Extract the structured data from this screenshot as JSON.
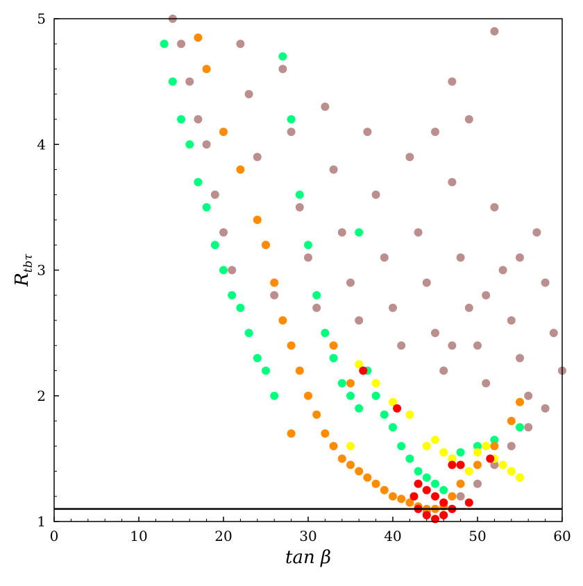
{
  "chart_data": {
    "type": "scatter",
    "title": "",
    "xlabel": "tan β",
    "ylabel": "R",
    "ylabel_subscript": "tbτ",
    "xlim": [
      0,
      60
    ],
    "ylim": [
      1,
      5
    ],
    "x_ticks": [
      0,
      10,
      20,
      30,
      40,
      50,
      60
    ],
    "y_ticks": [
      1,
      2,
      3,
      4,
      5
    ],
    "x_tick_labels": [
      "0",
      "10",
      "20",
      "30",
      "40",
      "50",
      "60"
    ],
    "y_tick_labels": [
      "1",
      "2",
      "3",
      "4",
      "5"
    ],
    "grid": false,
    "legend": "none",
    "reference_line": {
      "y": 1.1,
      "color": "#000000"
    },
    "series": [
      {
        "color": "#bc8f8f",
        "points": [
          [
            14,
            5
          ],
          [
            15,
            4.8
          ],
          [
            16,
            4.5
          ],
          [
            17,
            4.2
          ],
          [
            18,
            4
          ],
          [
            19,
            3.6
          ],
          [
            20,
            3.3
          ],
          [
            21,
            3
          ],
          [
            22,
            4.8
          ],
          [
            23,
            4.4
          ],
          [
            24,
            3.9
          ],
          [
            25,
            3.2
          ],
          [
            26,
            2.8
          ],
          [
            27,
            4.6
          ],
          [
            28,
            4.1
          ],
          [
            29,
            3.5
          ],
          [
            30,
            3.1
          ],
          [
            31,
            2.7
          ],
          [
            32,
            4.3
          ],
          [
            33,
            3.8
          ],
          [
            34,
            3.3
          ],
          [
            35,
            2.9
          ],
          [
            36,
            2.6
          ],
          [
            37,
            4.1
          ],
          [
            38,
            3.6
          ],
          [
            39,
            3.1
          ],
          [
            40,
            2.7
          ],
          [
            41,
            2.4
          ],
          [
            42,
            3.9
          ],
          [
            43,
            3.3
          ],
          [
            44,
            2.9
          ],
          [
            45,
            2.5
          ],
          [
            46,
            2.2
          ],
          [
            47,
            3.7
          ],
          [
            48,
            3.1
          ],
          [
            49,
            2.7
          ],
          [
            50,
            2.4
          ],
          [
            51,
            2.1
          ],
          [
            52,
            3.5
          ],
          [
            53,
            3.0
          ],
          [
            54,
            2.6
          ],
          [
            55,
            2.3
          ],
          [
            56,
            2.0
          ],
          [
            57,
            3.3
          ],
          [
            58,
            2.9
          ],
          [
            59,
            2.5
          ],
          [
            60,
            2.2
          ],
          [
            48,
            1.2
          ],
          [
            50,
            1.3
          ],
          [
            52,
            1.45
          ],
          [
            54,
            1.6
          ],
          [
            56,
            1.75
          ],
          [
            58,
            1.9
          ],
          [
            47,
            2.4
          ],
          [
            51,
            2.8
          ],
          [
            55,
            3.1
          ],
          [
            45,
            4.1
          ],
          [
            47,
            4.5
          ],
          [
            52,
            4.9
          ],
          [
            49,
            4.2
          ],
          [
            46,
            1.05
          ],
          [
            44,
            1.08
          ]
        ]
      },
      {
        "color": "#00ff7f",
        "points": [
          [
            13,
            4.8
          ],
          [
            14,
            4.5
          ],
          [
            15,
            4.2
          ],
          [
            16,
            4.0
          ],
          [
            17,
            3.7
          ],
          [
            18,
            3.5
          ],
          [
            19,
            3.2
          ],
          [
            20,
            3.0
          ],
          [
            21,
            2.8
          ],
          [
            22,
            2.7
          ],
          [
            23,
            2.5
          ],
          [
            24,
            2.3
          ],
          [
            25,
            2.2
          ],
          [
            26,
            2.0
          ],
          [
            27,
            4.7
          ],
          [
            28,
            4.2
          ],
          [
            29,
            3.6
          ],
          [
            30,
            3.2
          ],
          [
            31,
            2.8
          ],
          [
            32,
            2.5
          ],
          [
            33,
            2.3
          ],
          [
            34,
            2.1
          ],
          [
            35,
            2.0
          ],
          [
            36,
            1.9
          ],
          [
            37,
            2.2
          ],
          [
            38,
            2.0
          ],
          [
            39,
            1.85
          ],
          [
            40,
            1.75
          ],
          [
            41,
            1.6
          ],
          [
            42,
            1.5
          ],
          [
            43,
            1.4
          ],
          [
            44,
            1.35
          ],
          [
            45,
            1.3
          ],
          [
            46,
            1.25
          ],
          [
            47,
            1.5
          ],
          [
            48,
            1.55
          ],
          [
            50,
            1.6
          ],
          [
            52,
            1.65
          ],
          [
            55,
            1.75
          ],
          [
            36,
            3.3
          ]
        ]
      },
      {
        "color": "#ff8c00",
        "points": [
          [
            17,
            4.85
          ],
          [
            18,
            4.6
          ],
          [
            20,
            4.1
          ],
          [
            22,
            3.8
          ],
          [
            24,
            3.4
          ],
          [
            25,
            3.2
          ],
          [
            26,
            2.9
          ],
          [
            27,
            2.6
          ],
          [
            28,
            2.4
          ],
          [
            29,
            2.2
          ],
          [
            30,
            2.0
          ],
          [
            31,
            1.85
          ],
          [
            32,
            1.7
          ],
          [
            33,
            1.6
          ],
          [
            34,
            1.5
          ],
          [
            35,
            1.45
          ],
          [
            36,
            1.4
          ],
          [
            37,
            1.35
          ],
          [
            38,
            1.3
          ],
          [
            39,
            1.25
          ],
          [
            40,
            1.2
          ],
          [
            41,
            1.18
          ],
          [
            42,
            1.15
          ],
          [
            43,
            1.12
          ],
          [
            44,
            1.1
          ],
          [
            45,
            1.1
          ],
          [
            46,
            1.12
          ],
          [
            47,
            1.2
          ],
          [
            48,
            1.3
          ],
          [
            50,
            1.45
          ],
          [
            52,
            1.6
          ],
          [
            54,
            1.8
          ],
          [
            55,
            1.95
          ],
          [
            28,
            1.7
          ],
          [
            33,
            2.4
          ],
          [
            35,
            2.1
          ]
        ]
      },
      {
        "color": "#ffff00",
        "points": [
          [
            36,
            2.25
          ],
          [
            38,
            2.1
          ],
          [
            40,
            1.95
          ],
          [
            42,
            1.85
          ],
          [
            44,
            1.6
          ],
          [
            45,
            1.65
          ],
          [
            46,
            1.55
          ],
          [
            47,
            1.5
          ],
          [
            48,
            1.45
          ],
          [
            49,
            1.4
          ],
          [
            50,
            1.55
          ],
          [
            51,
            1.6
          ],
          [
            52,
            1.5
          ],
          [
            53,
            1.45
          ],
          [
            54,
            1.4
          ],
          [
            55,
            1.35
          ],
          [
            35,
            1.6
          ]
        ]
      },
      {
        "color": "#ff0000",
        "points": [
          [
            43,
            1.3
          ],
          [
            44,
            1.25
          ],
          [
            45,
            1.2
          ],
          [
            46,
            1.15
          ],
          [
            47,
            1.1
          ],
          [
            43,
            1.1
          ],
          [
            44,
            1.05
          ],
          [
            45,
            1.02
          ],
          [
            46,
            1.05
          ],
          [
            47,
            1.45
          ],
          [
            48,
            1.45
          ],
          [
            51.5,
            1.5
          ],
          [
            36.5,
            2.2
          ],
          [
            40.5,
            1.9
          ],
          [
            49,
            1.15
          ],
          [
            42.5,
            1.2
          ]
        ]
      }
    ]
  }
}
